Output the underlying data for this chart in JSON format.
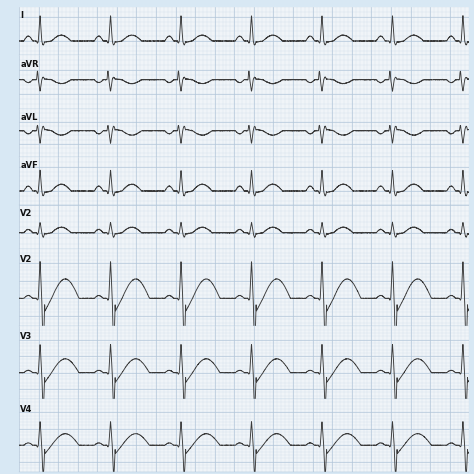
{
  "background_color": "#f0f4f8",
  "grid_minor_color": "#c8d8e8",
  "grid_major_color": "#b0c4d8",
  "ecg_color": "#3a3a3a",
  "lead_labels": [
    "I",
    "aVR",
    "aVL",
    "aVF",
    "V2",
    "V2",
    "V3",
    "V4"
  ],
  "n_leads": 8,
  "label_fontsize": 6,
  "fig_bg": "#d8e8f4",
  "border_color": "#b0c8dc",
  "heights": [
    1.0,
    1.1,
    1.0,
    1.0,
    0.9,
    1.6,
    1.5,
    1.5
  ]
}
